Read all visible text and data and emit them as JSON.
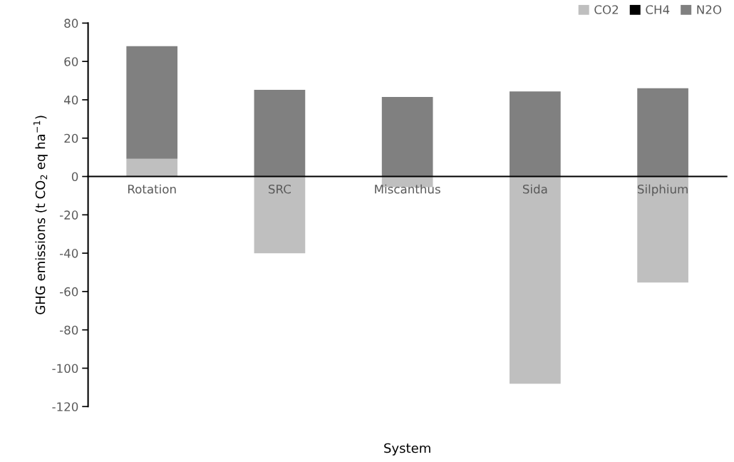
{
  "chart_data": {
    "type": "bar",
    "stacked": true,
    "xlabel": "System",
    "ylabel": "GHG emissions (t CO$_{2}$ eq ha$^{−1}$)",
    "categories": [
      "Rotation",
      "SRC",
      "Miscanthus",
      "Sida",
      "Silphium"
    ],
    "series": [
      {
        "name": "CO2",
        "color": "#bfbfbf",
        "values": [
          9.2,
          -40.1,
          -5.6,
          -108.1,
          -55.3
        ]
      },
      {
        "name": "CH4",
        "color": "#000000",
        "values": [
          0,
          0,
          0,
          0,
          0
        ]
      },
      {
        "name": "N2O",
        "color": "#808080",
        "values": [
          58.8,
          45.2,
          41.5,
          44.4,
          46.0
        ]
      }
    ],
    "ylim": [
      -120,
      80
    ],
    "yticks": [
      -120,
      -100,
      -80,
      -60,
      -40,
      -20,
      0,
      20,
      40,
      60,
      80
    ],
    "grid": false,
    "legend": "top right"
  }
}
